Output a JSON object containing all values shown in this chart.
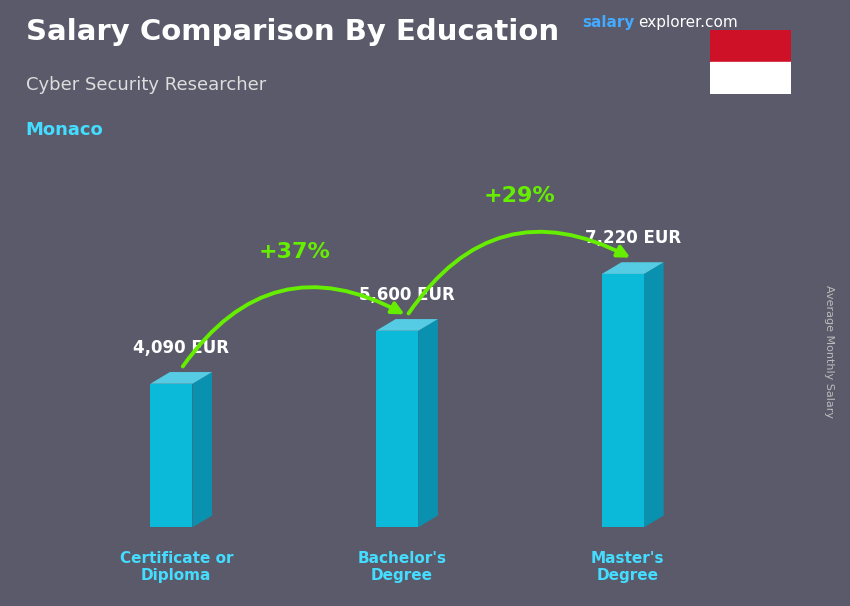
{
  "title": "Salary Comparison By Education",
  "subtitle": "Cyber Security Researcher",
  "location": "Monaco",
  "brand": "salary",
  "brand2": "explorer.com",
  "ylabel": "Average Monthly Salary",
  "categories": [
    "Certificate or\nDiploma",
    "Bachelor's\nDegree",
    "Master's\nDegree"
  ],
  "values": [
    4090,
    5600,
    7220
  ],
  "value_labels": [
    "4,090 EUR",
    "5,600 EUR",
    "7,220 EUR"
  ],
  "pct_labels": [
    "+37%",
    "+29%"
  ],
  "bar_color_face": "#00c8e8",
  "bar_color_side": "#0099bb",
  "bar_color_top": "#55ddf5",
  "arrow_color": "#66ee00",
  "title_color": "#ffffff",
  "subtitle_color": "#dddddd",
  "location_color": "#44ddff",
  "value_color": "#ffffff",
  "pct_color": "#66ee00",
  "xlabel_color": "#44ddff",
  "brand_color1": "#44aaff",
  "brand_color2": "#ffffff",
  "bg_color": "#5a5a6a",
  "ylim": [
    0,
    9500
  ],
  "bar_width": 0.28,
  "x_positions": [
    1.0,
    2.5,
    4.0
  ],
  "xlim": [
    0.2,
    5.0
  ]
}
